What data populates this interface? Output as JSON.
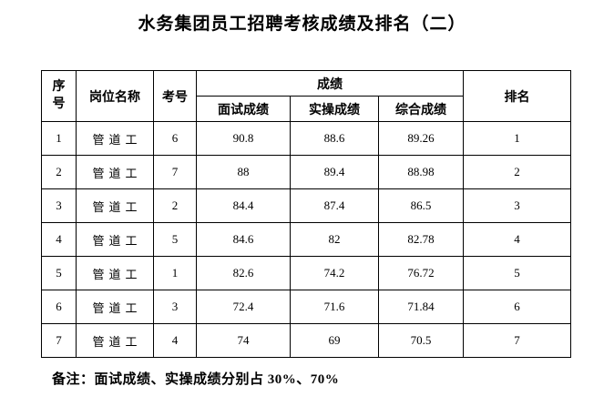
{
  "document": {
    "title": "水务集团员工招聘考核成绩及排名（二）",
    "note": "备注：面试成绩、实操成绩分别占 30%、70%"
  },
  "table": {
    "headers": {
      "seq": "序号",
      "position": "岗位名称",
      "exam_no": "考号",
      "score_group": "成绩",
      "interview": "面试成绩",
      "practical": "实操成绩",
      "composite": "综合成绩",
      "rank": "排名"
    },
    "rows": [
      {
        "seq": "1",
        "position": "管道工",
        "exam_no": "6",
        "interview": "90.8",
        "practical": "88.6",
        "composite": "89.26",
        "rank": "1"
      },
      {
        "seq": "2",
        "position": "管道工",
        "exam_no": "7",
        "interview": "88",
        "practical": "89.4",
        "composite": "88.98",
        "rank": "2"
      },
      {
        "seq": "3",
        "position": "管道工",
        "exam_no": "2",
        "interview": "84.4",
        "practical": "87.4",
        "composite": "86.5",
        "rank": "3"
      },
      {
        "seq": "4",
        "position": "管道工",
        "exam_no": "5",
        "interview": "84.6",
        "practical": "82",
        "composite": "82.78",
        "rank": "4"
      },
      {
        "seq": "5",
        "position": "管道工",
        "exam_no": "1",
        "interview": "82.6",
        "practical": "74.2",
        "composite": "76.72",
        "rank": "5"
      },
      {
        "seq": "6",
        "position": "管道工",
        "exam_no": "3",
        "interview": "72.4",
        "practical": "71.6",
        "composite": "71.84",
        "rank": "6"
      },
      {
        "seq": "7",
        "position": "管道工",
        "exam_no": "4",
        "interview": "74",
        "practical": "69",
        "composite": "70.5",
        "rank": "7"
      }
    ]
  },
  "colors": {
    "text": "#000000",
    "border": "#000000",
    "background": "#ffffff"
  }
}
